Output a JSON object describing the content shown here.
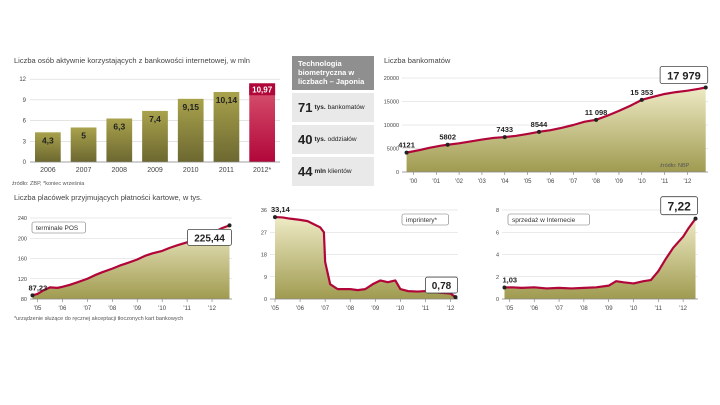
{
  "colors": {
    "accent": "#b1063a",
    "bar": "#a8a04a",
    "bar_dark": "#5e5a27",
    "area_top": "#eeeac5",
    "area_bottom": "#9f9a4e",
    "grid": "#d4d4d4",
    "axis_text": "#444444"
  },
  "chart_data": [
    {
      "id": "internet_banking",
      "type": "bar",
      "title": "Liczba osób aktywnie korzystających z bankowości internetowej, w mln",
      "categories": [
        "2006",
        "2007",
        "2008",
        "2009",
        "2010",
        "2011",
        "2012*"
      ],
      "values": [
        4.3,
        5,
        6.3,
        7.4,
        9.15,
        10.14,
        10.97
      ],
      "labels": [
        "4,3",
        "5",
        "6,3",
        "7,4",
        "9,15",
        "10,14",
        "10,97"
      ],
      "highlight_index": 6,
      "yticks": [
        0,
        3,
        6,
        9,
        12
      ],
      "ylim": [
        0,
        12.6
      ],
      "source": "źródło: ZBP, *koniec września"
    },
    {
      "id": "atms",
      "type": "area",
      "title": "Liczba bankomatów",
      "xticks": [
        "'00",
        "'01",
        "'02",
        "'03",
        "'04",
        "'05",
        "'06",
        "'07",
        "'08",
        "'09",
        "'10",
        "'11",
        "'12"
      ],
      "x": [
        1999.7,
        2000.3,
        2000.7,
        2001.2,
        2001.5,
        2002,
        2002.5,
        2003,
        2003.5,
        2004,
        2004.5,
        2005,
        2005.5,
        2006,
        2006.5,
        2007,
        2007.5,
        2008,
        2008.5,
        2009,
        2009.5,
        2010,
        2010.5,
        2011,
        2011.5,
        2012,
        2012.5,
        2012.8
      ],
      "y": [
        4121,
        4700,
        5150,
        5600,
        5802,
        6100,
        6500,
        6900,
        7250,
        7433,
        7700,
        8100,
        8544,
        8900,
        9400,
        10000,
        10700,
        11098,
        12000,
        13000,
        14100,
        15353,
        16000,
        16600,
        17000,
        17300,
        17700,
        17979
      ],
      "point_labels": [
        {
          "x": 1999.7,
          "y": 4121,
          "text": "4121"
        },
        {
          "x": 2001.5,
          "y": 5802,
          "text": "5802"
        },
        {
          "x": 2004,
          "y": 7433,
          "text": "7433"
        },
        {
          "x": 2005.5,
          "y": 8544,
          "text": "8544"
        },
        {
          "x": 2008,
          "y": 11098,
          "text": "11 098"
        },
        {
          "x": 2010,
          "y": 15353,
          "text": "15 353"
        },
        {
          "x": 2012.8,
          "y": 17979,
          "text": "17 979",
          "boxed": true
        }
      ],
      "yticks": [
        0,
        5000,
        10000,
        15000,
        20000
      ],
      "ytick_labels": [
        "0",
        "5000",
        "10000",
        "15000",
        "20000"
      ],
      "ylim": [
        0,
        20000
      ],
      "xlim": [
        1999.5,
        2012.9
      ],
      "source": "źródło: NBP"
    },
    {
      "id": "pos",
      "type": "area",
      "title": "Liczba placówek przyjmujących płatności kartowe, w tys.",
      "series_label": "terminale POS",
      "xticks": [
        "'05",
        "'06",
        "'07",
        "'08",
        "'09",
        "'10",
        "'11",
        "'12"
      ],
      "x": [
        2004.8,
        2005,
        2005.2,
        2005.5,
        2005.8,
        2006,
        2006.3,
        2006.6,
        2007,
        2007.3,
        2007.6,
        2008,
        2008.3,
        2008.6,
        2009,
        2009.3,
        2009.6,
        2010,
        2010.3,
        2010.6,
        2011,
        2011.3,
        2011.6,
        2012,
        2012.4,
        2012.7
      ],
      "y": [
        87.23,
        90,
        96,
        103,
        102,
        104,
        108,
        113,
        120,
        127,
        133,
        140,
        146,
        151,
        158,
        165,
        170,
        175,
        181,
        186,
        192,
        197,
        201,
        210,
        220,
        225.44
      ],
      "point_labels": [
        {
          "x": 2004.8,
          "y": 87.23,
          "text": "87,23"
        },
        {
          "x": 2012.7,
          "y": 225.44,
          "text": "225,44",
          "boxed": true
        }
      ],
      "yticks": [
        80,
        120,
        160,
        200,
        240
      ],
      "ylim": [
        80,
        240
      ],
      "xlim": [
        2004.7,
        2012.8
      ]
    },
    {
      "id": "imprinters",
      "type": "area",
      "series_label": "imprintery*",
      "xticks": [
        "'05",
        "'06",
        "'07",
        "'08",
        "'09",
        "'10",
        "'11",
        "'12"
      ],
      "x": [
        2005,
        2005.3,
        2005.6,
        2006,
        2006.3,
        2006.6,
        2006.8,
        2006.95,
        2007,
        2007.2,
        2007.5,
        2008,
        2008.3,
        2008.6,
        2008.9,
        2009.2,
        2009.5,
        2009.8,
        2010,
        2010.3,
        2010.7,
        2011,
        2011.3,
        2011.6,
        2012,
        2012.2
      ],
      "y": [
        33.14,
        33,
        32.5,
        32,
        31.5,
        30,
        29,
        27,
        15,
        6,
        4,
        4,
        3.6,
        4,
        6,
        7.5,
        6.8,
        7.5,
        4,
        3.2,
        3,
        3.2,
        2.8,
        2.5,
        2.2,
        0.78
      ],
      "point_labels": [
        {
          "x": 2005,
          "y": 33.14,
          "text": "33,14"
        },
        {
          "x": 2012.2,
          "y": 0.78,
          "text": "0,78",
          "boxed": true
        }
      ],
      "yticks": [
        0,
        9,
        18,
        27,
        36
      ],
      "ylim": [
        0,
        36
      ],
      "xlim": [
        2004.8,
        2012.3
      ]
    },
    {
      "id": "internet_sales",
      "type": "area",
      "series_label": "sprzedaż w Internecie",
      "xticks": [
        "'05",
        "'06",
        "'07",
        "'08",
        "'09",
        "'10",
        "'11",
        "'12"
      ],
      "x": [
        2004.8,
        2005.1,
        2005.5,
        2006,
        2006.5,
        2007,
        2007.5,
        2008,
        2008.5,
        2009,
        2009.3,
        2009.6,
        2010,
        2010.4,
        2010.7,
        2011,
        2011.3,
        2011.6,
        2012,
        2012.2,
        2012.5
      ],
      "y": [
        1.03,
        1.05,
        1.0,
        1.05,
        0.95,
        1.0,
        0.95,
        1.0,
        1.05,
        1.2,
        1.6,
        1.5,
        1.4,
        1.6,
        1.7,
        2.5,
        3.6,
        4.6,
        5.6,
        6.3,
        7.22
      ],
      "point_labels": [
        {
          "x": 2004.8,
          "y": 1.03,
          "text": "1,03"
        },
        {
          "x": 2012.5,
          "y": 7.22,
          "text": "7,22",
          "boxed": true
        }
      ],
      "yticks": [
        0,
        2,
        4,
        6,
        8
      ],
      "ylim": [
        0,
        8
      ],
      "xlim": [
        2004.7,
        2012.6
      ]
    }
  ],
  "infobox": {
    "title": "Technologia biometryczna w liczbach – Japonia",
    "rows": [
      {
        "num": "71",
        "unit": "tys.",
        "text": "bankomatów"
      },
      {
        "num": "40",
        "unit": "tys.",
        "text": "oddziałów"
      },
      {
        "num": "44",
        "unit": "mln",
        "text": "klientów"
      }
    ]
  },
  "footnote": "*urządzenie służące do ręcznej akceptacji tłoczonych kart bankowych"
}
